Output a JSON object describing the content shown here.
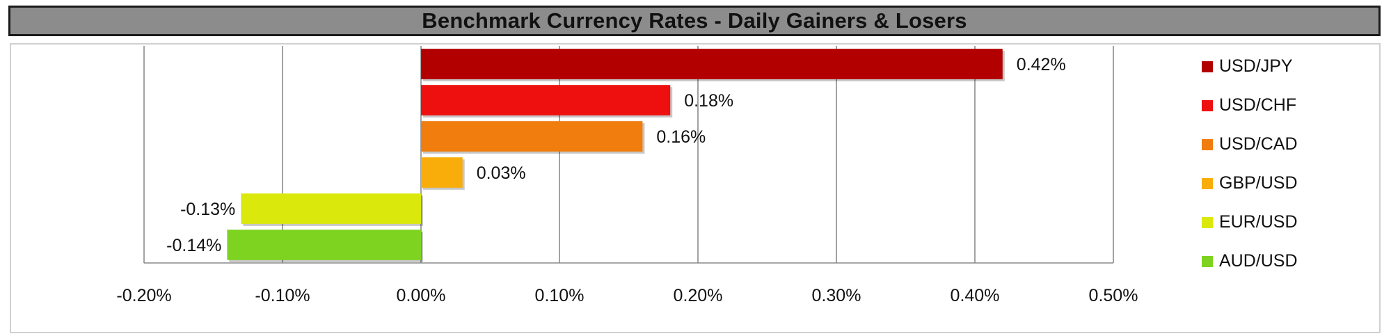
{
  "title": "Benchmark Currency Rates - Daily Gainers & Losers",
  "chart_data": {
    "type": "bar",
    "orientation": "horizontal",
    "title": "Benchmark Currency Rates - Daily Gainers & Losers",
    "categories": [
      "USD/JPY",
      "USD/CHF",
      "USD/CAD",
      "GBP/USD",
      "EUR/USD",
      "AUD/USD"
    ],
    "values": [
      0.42,
      0.18,
      0.16,
      0.03,
      -0.13,
      -0.14
    ],
    "value_labels": [
      "0.42%",
      "0.18%",
      "0.16%",
      "0.03%",
      "-0.13%",
      "-0.14%"
    ],
    "colors": [
      "#b20000",
      "#ee0f0f",
      "#f07d0e",
      "#f8ad0a",
      "#dae90b",
      "#7ed321"
    ],
    "xlim": [
      -0.2,
      0.5
    ],
    "xticks": [
      -0.2,
      -0.1,
      0.0,
      0.1,
      0.2,
      0.3,
      0.4,
      0.5
    ],
    "xtick_labels": [
      "-0.20%",
      "-0.10%",
      "0.00%",
      "0.10%",
      "0.20%",
      "0.30%",
      "0.40%",
      "0.50%"
    ],
    "xlabel": "",
    "ylabel": "",
    "grid": "vertical",
    "legend": {
      "position": "right",
      "entries": [
        "USD/JPY",
        "USD/CHF",
        "USD/CAD",
        "GBP/USD",
        "EUR/USD",
        "AUD/USD"
      ]
    }
  }
}
